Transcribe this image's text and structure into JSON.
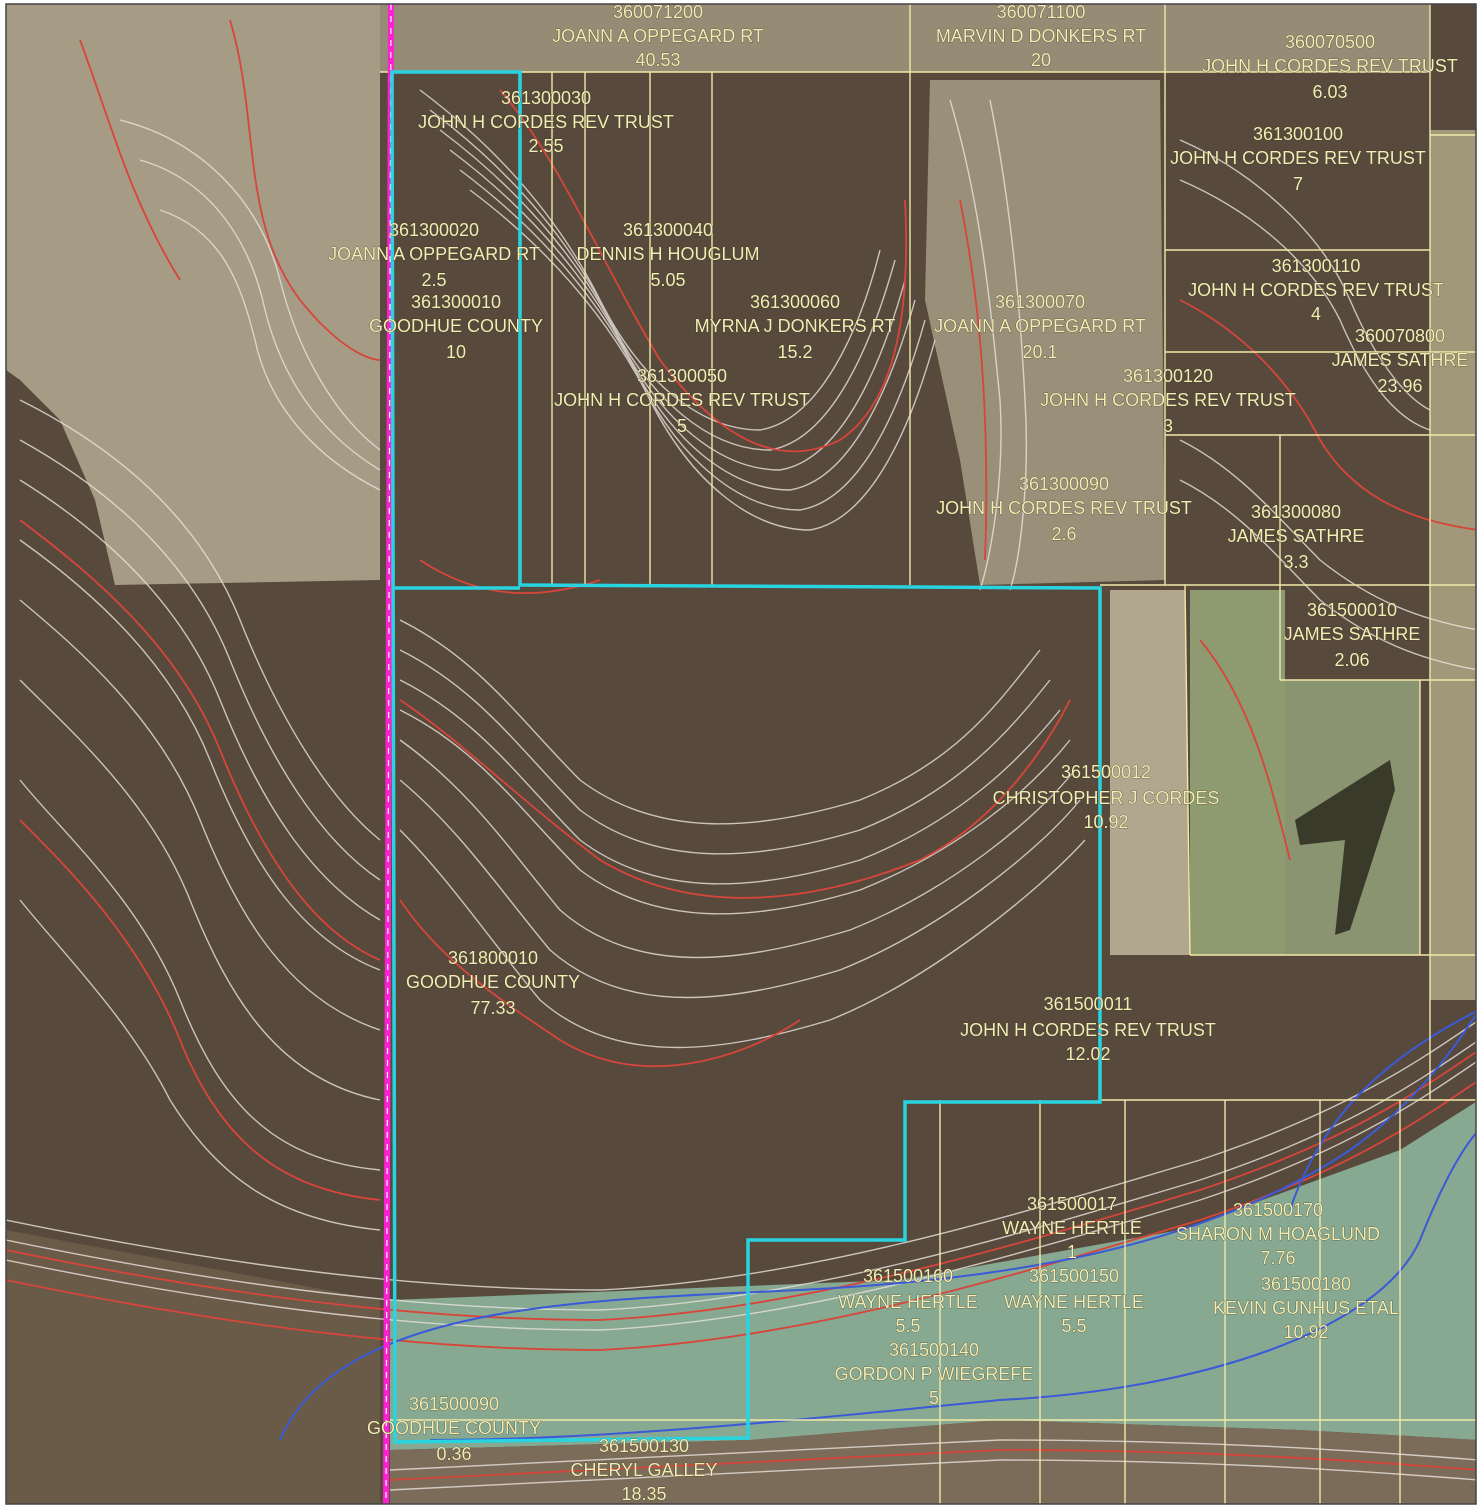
{
  "map": {
    "colors": {
      "forest": "#57493c",
      "field_light": "#a69b84",
      "field_mid": "#8e8470",
      "wetland": "#8fb8a0",
      "contour_minor": "#e8e3dc",
      "contour_major": "#d8453a",
      "parcel_line": "#f0e9a8",
      "subject_boundary": "#27d4e0",
      "section_line": "#ff1fd2",
      "water_line": "#3a5ad8",
      "label_text": "#f3efb4"
    },
    "parcels": [
      {
        "pin": "360071200",
        "owner": "JOANN A OPPEGARD RT",
        "acres": "40.53"
      },
      {
        "pin": "360071100",
        "owner": "MARVIN D DONKERS RT",
        "acres": "20"
      },
      {
        "pin": "360070500",
        "owner": "JOHN H CORDES REV TRUST",
        "acres": "6.03"
      },
      {
        "pin": "361300030",
        "owner": "JOHN H CORDES REV TRUST",
        "acres": "2.55"
      },
      {
        "pin": "361300100",
        "owner": "JOHN H CORDES REV TRUST",
        "acres": "7"
      },
      {
        "pin": "361300020",
        "owner": "JOANN A OPPEGARD RT",
        "acres": "2.5"
      },
      {
        "pin": "361300040",
        "owner": "DENNIS H HOUGLUM",
        "acres": "5.05"
      },
      {
        "pin": "361300110",
        "owner": "JOHN H CORDES REV TRUST",
        "acres": "4"
      },
      {
        "pin": "361300010",
        "owner": "GOODHUE COUNTY",
        "acres": "10"
      },
      {
        "pin": "361300060",
        "owner": "MYRNA J DONKERS RT",
        "acres": "15.2"
      },
      {
        "pin": "361300070",
        "owner": "JOANN A OPPEGARD RT",
        "acres": "20.1"
      },
      {
        "pin": "360070800",
        "owner": "JAMES SATHRE",
        "acres": "23.96"
      },
      {
        "pin": "361300050",
        "owner": "JOHN H CORDES REV TRUST",
        "acres": "5"
      },
      {
        "pin": "361300120",
        "owner": "JOHN H CORDES REV TRUST",
        "acres": "3"
      },
      {
        "pin": "361300090",
        "owner": "JOHN H CORDES REV TRUST",
        "acres": "2.6"
      },
      {
        "pin": "361300080",
        "owner": "JAMES SATHRE",
        "acres": "3.3"
      },
      {
        "pin": "361500010",
        "owner": "JAMES SATHRE",
        "acres": "2.06"
      },
      {
        "pin": "361500012",
        "owner": "CHRISTOPHER J CORDES",
        "acres": "10.92"
      },
      {
        "pin": "361800010",
        "owner": "GOODHUE COUNTY",
        "acres": "77.33"
      },
      {
        "pin": "361500011",
        "owner": "JOHN H CORDES REV TRUST",
        "acres": "12.02"
      },
      {
        "pin": "361500017",
        "owner": "WAYNE HERTLE",
        "acres": "1"
      },
      {
        "pin": "361500170",
        "owner": "SHARON M HOAGLUND",
        "acres": "7.76"
      },
      {
        "pin": "361500160",
        "owner": "WAYNE HERTLE",
        "acres": "5.5"
      },
      {
        "pin": "361500150",
        "owner": "WAYNE HERTLE",
        "acres": "5.5"
      },
      {
        "pin": "361500180",
        "owner": "KEVIN GUNHUS ETAL",
        "acres": "10.92"
      },
      {
        "pin": "361500140",
        "owner": "GORDON P WIEGREFE",
        "acres": "5"
      },
      {
        "pin": "361500090",
        "owner": "GOODHUE COUNTY",
        "acres": "0.36"
      },
      {
        "pin": "361500130",
        "owner": "CHERYL GALLEY",
        "acres": "18.35"
      }
    ]
  }
}
